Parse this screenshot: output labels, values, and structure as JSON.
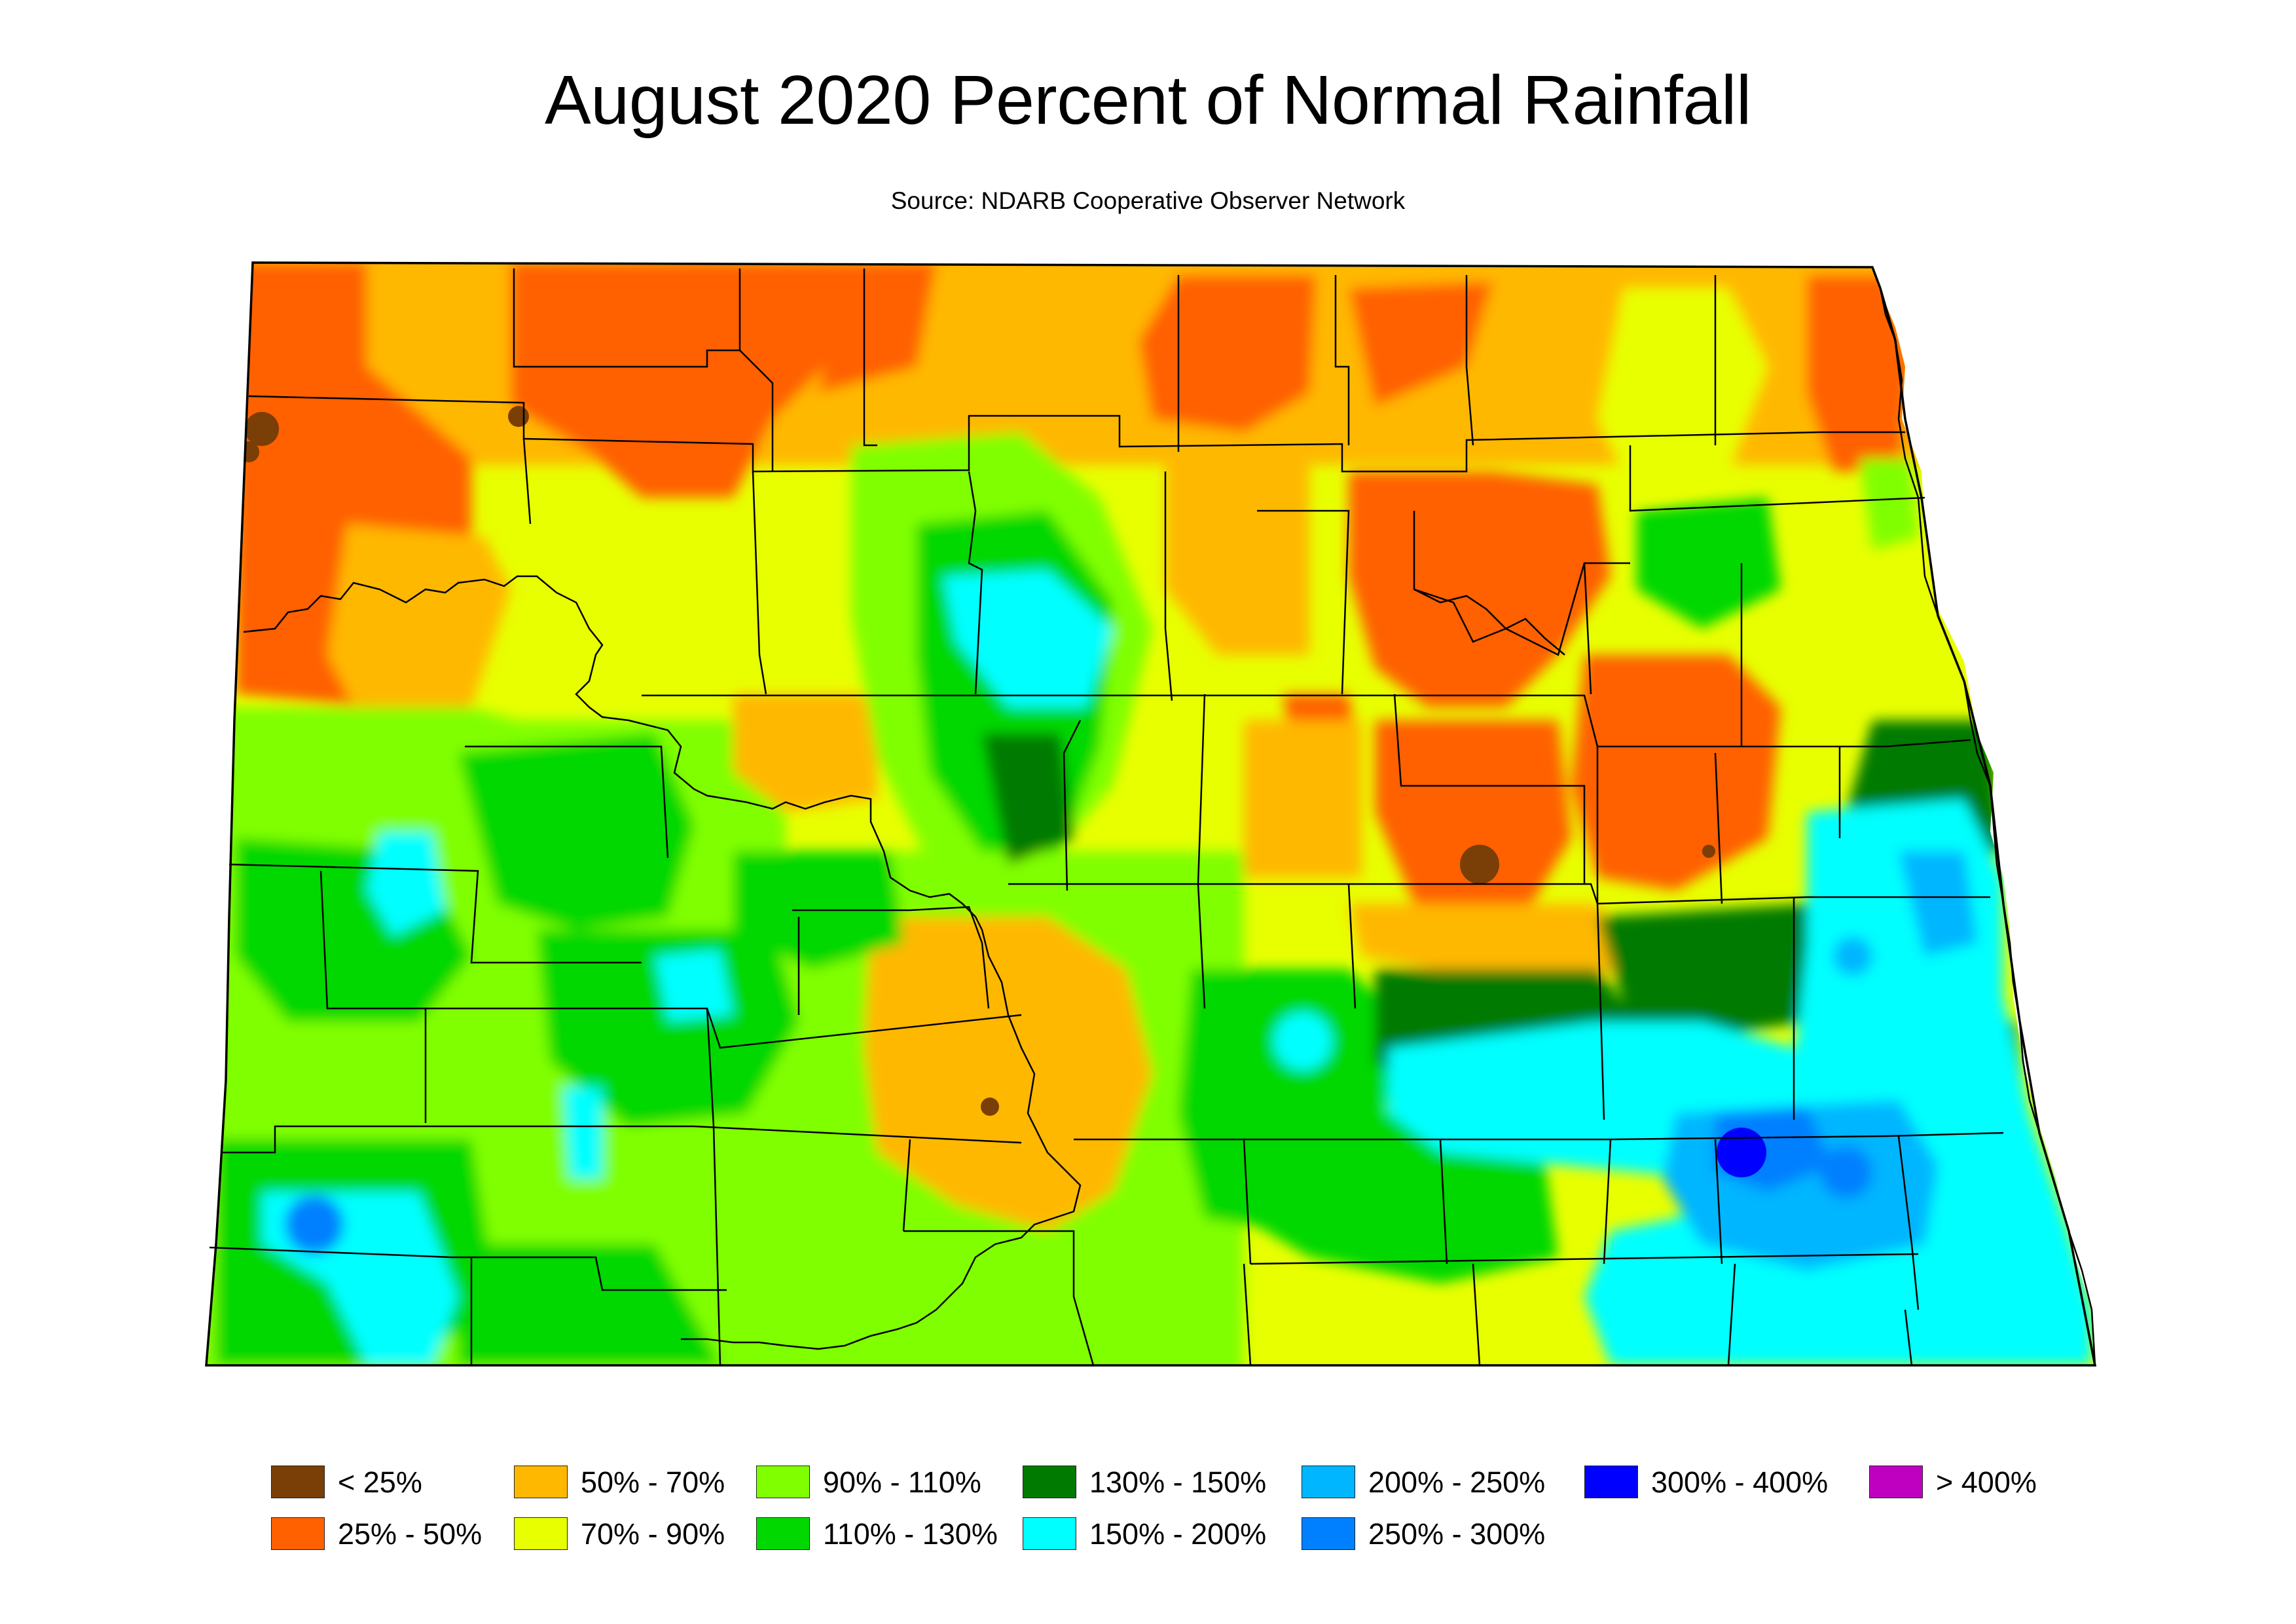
{
  "title": "August 2020 Percent of Normal Rainfall",
  "subtitle": "Source: NDARB Cooperative Observer Network",
  "colors": {
    "lt25": "#7a3e07",
    "25_50": "#ff6000",
    "50_70": "#ffb800",
    "70_90": "#e8ff00",
    "90_110": "#80ff00",
    "110_130": "#00d800",
    "130_150": "#007a00",
    "150_200": "#00ffff",
    "200_250": "#00b6ff",
    "250_300": "#0080ff",
    "300_400": "#0000ff",
    "gt400": "#c000c0"
  },
  "legend": [
    {
      "label": "< 25%",
      "color": "#7a3e07"
    },
    {
      "label": "25% - 50%",
      "color": "#ff6000"
    },
    {
      "label": "50% - 70%",
      "color": "#ffb800"
    },
    {
      "label": "70% - 90%",
      "color": "#e8ff00"
    },
    {
      "label": "90% - 110%",
      "color": "#80ff00"
    },
    {
      "label": "110% - 130%",
      "color": "#00d800"
    },
    {
      "label": "130% - 150%",
      "color": "#007a00"
    },
    {
      "label": "150% - 200%",
      "color": "#00ffff"
    },
    {
      "label": "200% - 250%",
      "color": "#00b6ff"
    },
    {
      "label": "250% - 300%",
      "color": "#0080ff"
    },
    {
      "label": "300% - 400%",
      "color": "#0000ff"
    },
    {
      "label": "> 400%",
      "color": "#c000c0"
    }
  ]
}
